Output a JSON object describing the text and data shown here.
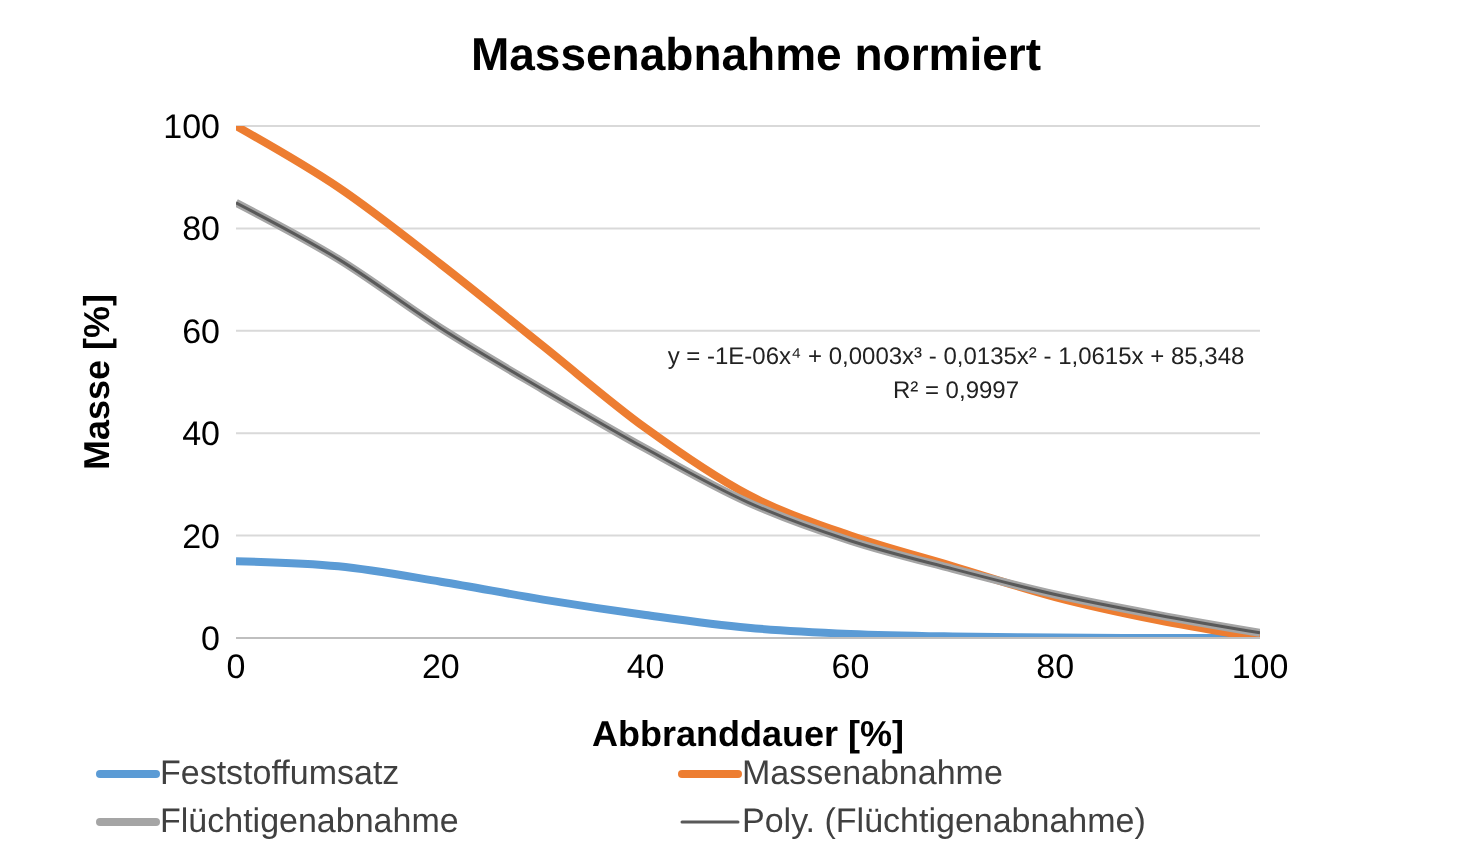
{
  "chart_data": {
    "type": "line",
    "title": "Massenabnahme normiert",
    "xlabel": "Abbranddauer [%]",
    "ylabel": "Masse [%]",
    "x": [
      0,
      10,
      20,
      30,
      40,
      50,
      60,
      70,
      80,
      90,
      100
    ],
    "series": [
      {
        "name": "Feststoffumsatz",
        "color": "#5b9bd5",
        "values": [
          15,
          14,
          11,
          7.5,
          4.5,
          2,
          0.8,
          0.3,
          0.1,
          0,
          0
        ]
      },
      {
        "name": "Massenabnahme",
        "color": "#ed7d31",
        "values": [
          100,
          88,
          73,
          57,
          41,
          28,
          20,
          14,
          8,
          3.5,
          0
        ]
      },
      {
        "name": "Flüchtigenabnahme",
        "color": "#a5a5a5",
        "values": [
          85,
          74,
          60.5,
          48.5,
          37,
          26.5,
          19,
          13.5,
          8.5,
          4.5,
          1
        ]
      },
      {
        "name": "Poly. (Flüchtigenabnahme)",
        "color": "#595959",
        "values": [
          85,
          74,
          60.5,
          48.5,
          37,
          26.5,
          19,
          13.5,
          8.5,
          4.5,
          1
        ]
      }
    ],
    "xlim": [
      0,
      100
    ],
    "xticks": [
      0,
      20,
      40,
      60,
      80,
      100
    ],
    "ylim": [
      0,
      100
    ],
    "yticks": [
      0,
      20,
      40,
      60,
      80,
      100
    ],
    "grid": "y",
    "legend": "bottom",
    "marker": "none",
    "line_style": "solid",
    "annotations": [
      "y = -1E-06x⁴ + 0,0003x³ - 0,0135x² - 1,0615x + 85,348",
      "R² = 0,9997"
    ]
  }
}
